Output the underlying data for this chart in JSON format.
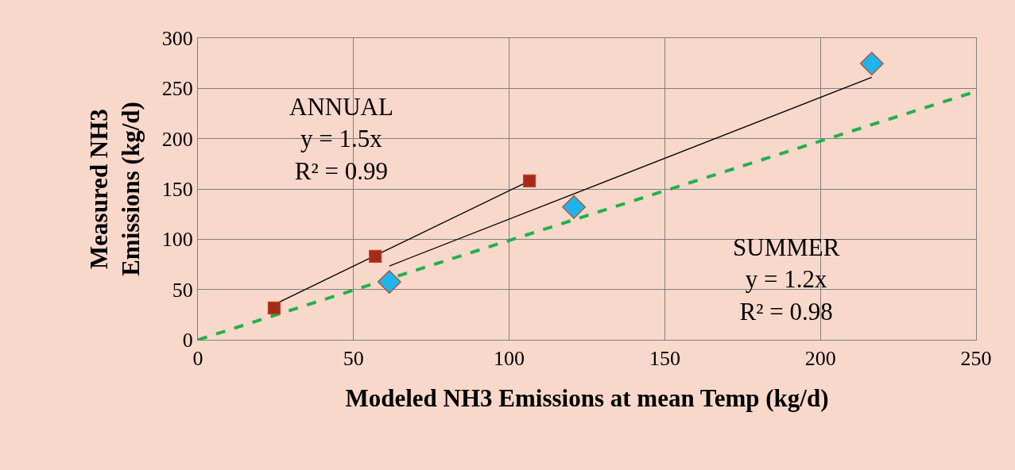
{
  "chart_data": {
    "type": "scatter",
    "xlabel": "Modeled NH3 Emissions at mean Temp (kg/d)",
    "ylabel": "Measured NH3 Emissions (kg/d)",
    "xlim": [
      0,
      250
    ],
    "xticks": [
      0,
      50,
      100,
      150,
      200,
      250
    ],
    "ylim": [
      0,
      300
    ],
    "yticks": [
      0,
      50,
      100,
      150,
      200,
      250,
      300
    ],
    "grid": true,
    "series": [
      {
        "marker": "square",
        "color": "#a52a1e",
        "x": [
          24.5,
          57,
          106.5
        ],
        "values": [
          31.6,
          83,
          158
        ]
      },
      {
        "marker": "diamond",
        "color": "#1eb4ec",
        "x": [
          61.5,
          120.8,
          216.5
        ],
        "values": [
          57.6,
          132,
          274.7
        ]
      },
      {
        "type": "line",
        "color": "#000000",
        "line_style": "solid",
        "x": [
          24.5,
          106.5
        ],
        "values": [
          35,
          158
        ]
      },
      {
        "type": "line",
        "color": "#000000",
        "line_style": "solid",
        "x": [
          61.5,
          216.5
        ],
        "values": [
          73.4,
          261
        ]
      },
      {
        "type": "line",
        "color": "#22b14c",
        "line_style": "dashed",
        "x": [
          0,
          250
        ],
        "values": [
          0,
          247
        ]
      }
    ],
    "annotations": [
      "ANNUAL\ny = 1.5x\nR² = 0.99",
      "SUMMER\ny = 1.2x\nR² = 0.98"
    ]
  }
}
